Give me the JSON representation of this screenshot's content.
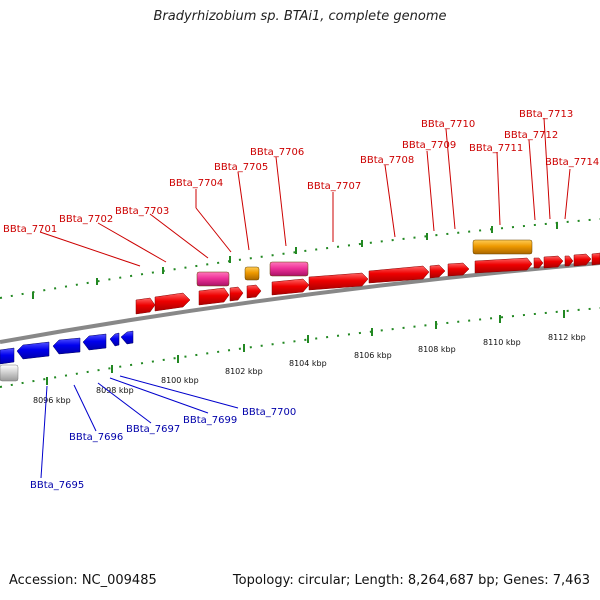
{
  "title": "Bradyrhizobium sp. BTAi1, complete genome",
  "footer": {
    "accession": "Accession: NC_009485",
    "topology": "Topology: circular; Length: 8,264,687 bp; Genes: 7,463"
  },
  "colors": {
    "forward_cds": "#ee0000",
    "pink_feature": "#ee3399",
    "orange_feature": "#ee9900",
    "reverse_cds": "#0000ee",
    "backbone": "#888888",
    "ticks": "#228822",
    "forward_label": "#cc0000",
    "reverse_label": "#0000aa"
  },
  "scale_labels": [
    "8096 kbp",
    "8098 kbp",
    "8100 kbp",
    "8102 kbp",
    "8104 kbp",
    "8106 kbp",
    "8108 kbp",
    "8110 kbp",
    "8112 kbp"
  ],
  "forward_genes": [
    "BBta_7701",
    "BBta_7702",
    "BBta_7703",
    "BBta_7704",
    "BBta_7705",
    "BBta_7706",
    "BBta_7707",
    "BBta_7708",
    "BBta_7709",
    "BBta_7710",
    "BBta_7711",
    "BBta_7712",
    "BBta_7713",
    "BBta_7714"
  ],
  "reverse_genes": [
    "BBta_7695",
    "BBta_7696",
    "BBta_7697",
    "BBta_7699",
    "BBta_7700"
  ]
}
